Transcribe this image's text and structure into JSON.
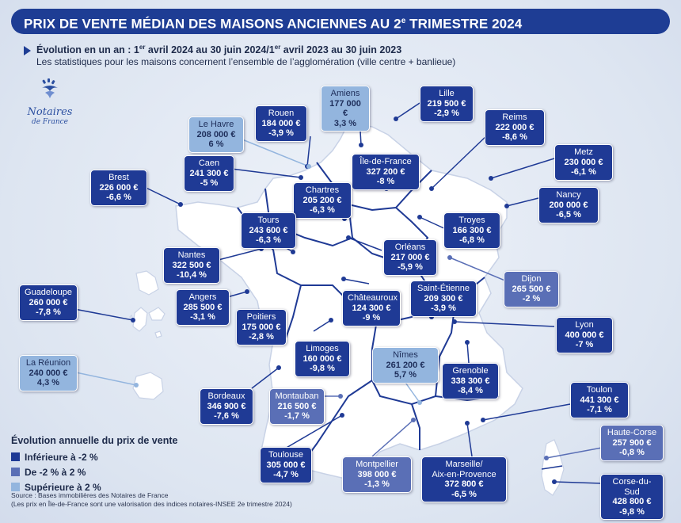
{
  "title": "PRIX DE VENTE MÉDIAN DES MAISONS ANCIENNES AU 2",
  "title_sup": "e",
  "title_end": " TRIMESTRE 2024",
  "subtitle_bold_a": "Évolution en un an : 1",
  "subtitle_sup_a": "er",
  "subtitle_bold_b": " avril 2024 au 30 juin 2024/1",
  "subtitle_sup_b": "er",
  "subtitle_bold_c": " avril 2023 au 30 juin 2023",
  "subtitle2": "Les statistiques pour les maisons concernent l’ensemble de l’agglomération (ville centre + banlieue)",
  "logo": {
    "name": "Notaires",
    "sub": "de France",
    "icon": "notaires-logo-icon"
  },
  "colors": {
    "dark": "#1f3a95",
    "mid": "#5a6fb6",
    "light": "#93b5de",
    "map_fill": "#ffffff",
    "background": "#dfe6f2"
  },
  "cities": [
    {
      "id": "amiens",
      "name": "Amiens",
      "price": "177 000 €",
      "change": "3,3 %",
      "cat": "light"
    },
    {
      "id": "lille",
      "name": "Lille",
      "price": "219 500 €",
      "change": "-2,9 %",
      "cat": "dark"
    },
    {
      "id": "rouen",
      "name": "Rouen",
      "price": "184 000 €",
      "change": "-3,9 %",
      "cat": "dark"
    },
    {
      "id": "lehavre",
      "name": "Le Havre",
      "price": "208 000 €",
      "change": "6 %",
      "cat": "light"
    },
    {
      "id": "reims",
      "name": "Reims",
      "price": "222 000 €",
      "change": "-8,6 %",
      "cat": "dark"
    },
    {
      "id": "caen",
      "name": "Caen",
      "price": "241 300 €",
      "change": "-5 %",
      "cat": "dark"
    },
    {
      "id": "idf",
      "name": "Île-de-France",
      "price": "327 200 €",
      "change": "-8 %",
      "cat": "dark"
    },
    {
      "id": "metz",
      "name": "Metz",
      "price": "230 000 €",
      "change": "-6,1 %",
      "cat": "dark"
    },
    {
      "id": "brest",
      "name": "Brest",
      "price": "226 000 €",
      "change": "-6,6 %",
      "cat": "dark"
    },
    {
      "id": "chartres",
      "name": "Chartres",
      "price": "205 200 €",
      "change": "-6,3 %",
      "cat": "dark"
    },
    {
      "id": "nancy",
      "name": "Nancy",
      "price": "200 000 €",
      "change": "-6,5 %",
      "cat": "dark"
    },
    {
      "id": "tours",
      "name": "Tours",
      "price": "243 600 €",
      "change": "-6,3 %",
      "cat": "dark"
    },
    {
      "id": "troyes",
      "name": "Troyes",
      "price": "166 300 €",
      "change": "-6,8 %",
      "cat": "dark"
    },
    {
      "id": "nantes",
      "name": "Nantes",
      "price": "322 500 €",
      "change": "-10,4 %",
      "cat": "dark"
    },
    {
      "id": "orleans",
      "name": "Orléans",
      "price": "217 000 €",
      "change": "-5,9 %",
      "cat": "dark"
    },
    {
      "id": "dijon",
      "name": "Dijon",
      "price": "265 500 €",
      "change": "-2 %",
      "cat": "mid"
    },
    {
      "id": "guadeloupe",
      "name": "Guadeloupe",
      "price": "260 000 €",
      "change": "-7,8 %",
      "cat": "dark"
    },
    {
      "id": "angers",
      "name": "Angers",
      "price": "285 500 €",
      "change": "-3,1 %",
      "cat": "dark"
    },
    {
      "id": "chateauroux",
      "name": "Châteauroux",
      "price": "124 300 €",
      "change": "-9 %",
      "cat": "dark"
    },
    {
      "id": "saintetienne",
      "name": "Saint-Étienne",
      "price": "209 300 €",
      "change": "-3,9 %",
      "cat": "dark"
    },
    {
      "id": "poitiers",
      "name": "Poitiers",
      "price": "175 000 €",
      "change": "-2,8 %",
      "cat": "dark"
    },
    {
      "id": "lyon",
      "name": "Lyon",
      "price": "400 000 €",
      "change": "-7 %",
      "cat": "dark"
    },
    {
      "id": "limoges",
      "name": "Limoges",
      "price": "160 000 €",
      "change": "-9,8 %",
      "cat": "dark"
    },
    {
      "id": "nimes",
      "name": "Nîmes",
      "price": "261 200 €",
      "change": "5,7 %",
      "cat": "light"
    },
    {
      "id": "reunion",
      "name": "La Réunion",
      "price": "240 000 €",
      "change": "4,3 %",
      "cat": "light"
    },
    {
      "id": "grenoble",
      "name": "Grenoble",
      "price": "338 300 €",
      "change": "-8,4 %",
      "cat": "dark"
    },
    {
      "id": "bordeaux",
      "name": "Bordeaux",
      "price": "346 900 €",
      "change": "-7,6 %",
      "cat": "dark"
    },
    {
      "id": "montauban",
      "name": "Montauban",
      "price": "216 500 €",
      "change": "-1,7 %",
      "cat": "mid"
    },
    {
      "id": "toulon",
      "name": "Toulon",
      "price": "441 300 €",
      "change": "-7,1 %",
      "cat": "dark"
    },
    {
      "id": "hautecorse",
      "name": "Haute-Corse",
      "price": "257 900 €",
      "change": "-0,8 %",
      "cat": "mid"
    },
    {
      "id": "toulouse",
      "name": "Toulouse",
      "price": "305 000 €",
      "change": "-4,7 %",
      "cat": "dark"
    },
    {
      "id": "montpellier",
      "name": "Montpellier",
      "price": "398 000 €",
      "change": "-1,3 %",
      "cat": "mid"
    },
    {
      "id": "marseille",
      "name": "Marseille/\nAix-en-Provence",
      "price": "372 800 €",
      "change": "-6,5 %",
      "cat": "dark"
    },
    {
      "id": "corsedusud",
      "name": "Corse-du-Sud",
      "price": "428 800 €",
      "change": "-9,8 %",
      "cat": "dark"
    }
  ],
  "legend": {
    "title": "Évolution annuelle du prix de vente",
    "items": [
      {
        "label": "Inférieure à -2 %",
        "color": "#1f3a95"
      },
      {
        "label": "De -2 % à 2 %",
        "color": "#5a6fb6"
      },
      {
        "label": "Supérieure à 2 %",
        "color": "#93b5de"
      }
    ]
  },
  "source_line1": "Source : Bases immobilières des Notaires de France",
  "source_line2": "(Les prix en Île-de-France sont une valorisation des indices notaires-INSEE 2e trimestre 2024)"
}
